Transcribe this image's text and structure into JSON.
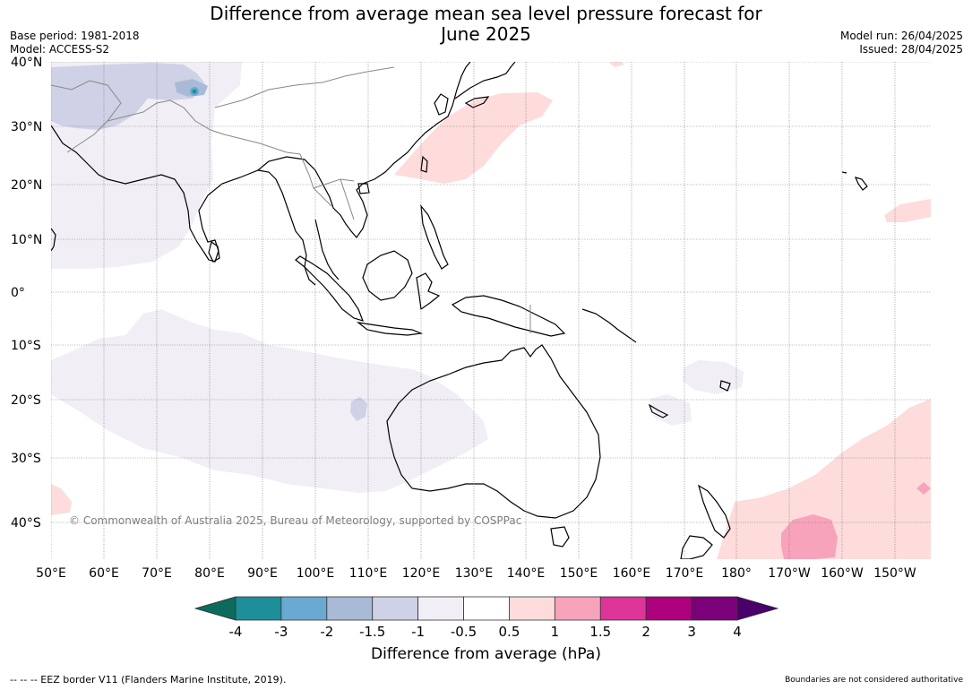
{
  "title_line1": "Difference from average mean sea level pressure forecast for",
  "title_line2": "June 2025",
  "meta": {
    "base_period": "Base period: 1981-2018",
    "model": "Model: ACCESS-S2",
    "model_run": "Model run: 26/04/2025",
    "issued": "Issued: 28/04/2025"
  },
  "lat_labels": [
    "40°N",
    "30°N",
    "20°N",
    "10°N",
    "0°",
    "10°S",
    "20°S",
    "30°S",
    "40°S"
  ],
  "lon_labels": [
    "50°E",
    "60°E",
    "70°E",
    "80°E",
    "90°E",
    "100°E",
    "110°E",
    "120°E",
    "130°E",
    "140°E",
    "150°E",
    "160°E",
    "170°E",
    "180°",
    "170°W",
    "160°W",
    "150°W"
  ],
  "copyright": "© Commonwealth of Australia 2025, Bureau of Meteorology, supported by COSPPac",
  "colorbar": {
    "label": "Difference from average (hPa)",
    "ticks": [
      "-4",
      "-3",
      "-2",
      "-1.5",
      "-1",
      "-0.5",
      "0.5",
      "1",
      "1.5",
      "2",
      "3",
      "4"
    ],
    "colors": [
      "#0d6b5e",
      "#1e8f99",
      "#6aaad2",
      "#a8bad6",
      "#cfd2e6",
      "#f1eef6",
      "#ffffff",
      "#fddcdb",
      "#f8a3bc",
      "#dd3497",
      "#ae017e",
      "#7a0177",
      "#49006a"
    ]
  },
  "footer_left": "--  --  -- EEZ border V11 (Flanders Marine Institute, 2019).",
  "footer_right": "Boundaries are not considered authoritative"
}
